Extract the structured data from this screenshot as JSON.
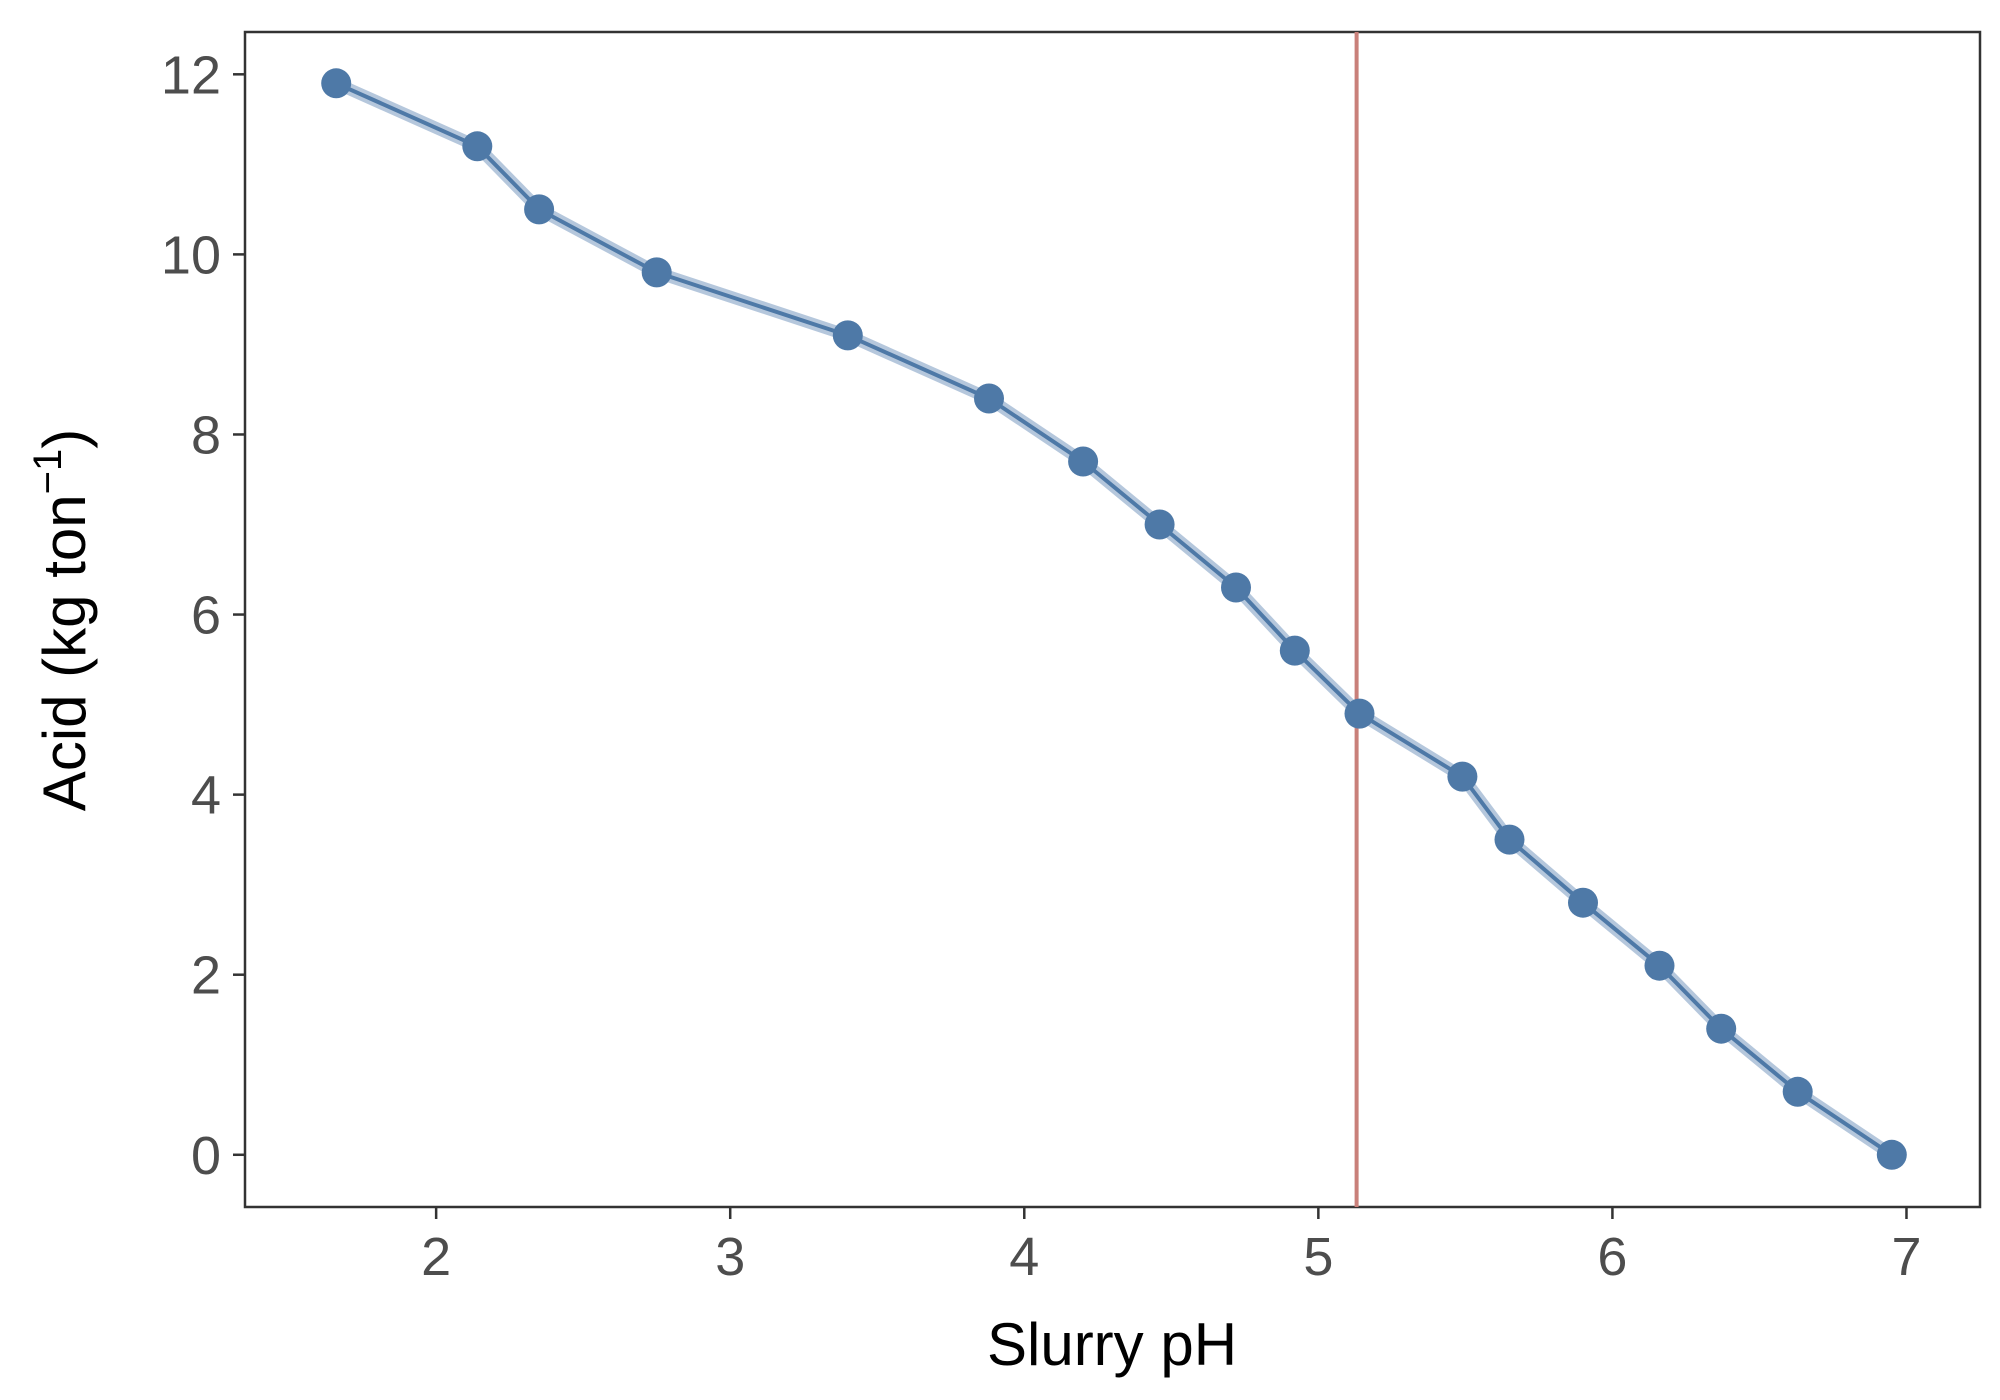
{
  "chart_data": {
    "type": "line",
    "title": "",
    "xlabel": "Slurry pH",
    "ylabel": {
      "text": "Acid (kg ton",
      "superscript": "−1",
      "close": ")"
    },
    "xlim": [
      1.35,
      7.25
    ],
    "ylim": [
      -0.58,
      12.47
    ],
    "x_ticks": [
      2,
      3,
      4,
      5,
      6,
      7
    ],
    "y_ticks": [
      0,
      2,
      4,
      6,
      8,
      10,
      12
    ],
    "grid": false,
    "legend": "none",
    "series": [
      {
        "x": [
          1.66,
          2.14,
          2.35,
          2.75,
          3.4,
          3.88,
          4.2,
          4.46,
          4.72,
          4.92,
          5.14,
          5.49,
          5.65,
          5.9,
          6.16,
          6.37,
          6.63,
          6.95
        ],
        "y": [
          11.9,
          11.2,
          10.5,
          9.8,
          9.1,
          8.4,
          7.7,
          7.0,
          6.3,
          5.6,
          4.9,
          4.2,
          3.5,
          2.8,
          2.1,
          1.4,
          0.7,
          0.0
        ],
        "color": "#4e79a7",
        "band_color": "#a8bdd6"
      }
    ],
    "reference_lines": [
      {
        "axis": "x",
        "value": 5.13,
        "color": "#c9807a"
      }
    ]
  }
}
